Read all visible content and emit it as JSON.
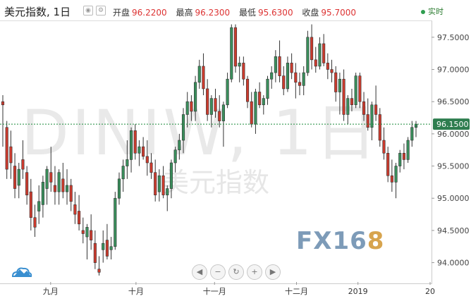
{
  "header": {
    "title": "美元指数, 1日",
    "ohlc": [
      {
        "label": "开盘",
        "value": "96.2200"
      },
      {
        "label": "最高",
        "value": "96.2300"
      },
      {
        "label": "最低",
        "value": "95.6300"
      },
      {
        "label": "收盘",
        "value": "95.7000"
      }
    ],
    "realtime_label": "实时"
  },
  "watermark": {
    "main": "DINIW, 1日",
    "sub": "美元指数",
    "logo_fx": "FX16",
    "logo_8": "8"
  },
  "colors": {
    "up": "#3a8f5c",
    "down": "#cc3b2e",
    "price_line": "#1a8a3a",
    "price_label_bg": "#2e7d4f"
  },
  "icons": [
    "eye-icon",
    "settings-icon",
    "cloud-logo-icon",
    "chevron-left-icon",
    "zoom-out-icon",
    "reset-icon",
    "zoom-in-icon",
    "chevron-right-icon"
  ],
  "chart_data": {
    "type": "candlestick",
    "current_price": "96.1500",
    "ylim": [
      93.7,
      97.75
    ],
    "y_ticks": [
      "97.5000",
      "97.0000",
      "96.5000",
      "96.0000",
      "95.5000",
      "95.0000",
      "94.5000",
      "94.0000"
    ],
    "x_ticks": [
      "九月",
      "十月",
      "十一月",
      "十二月",
      "2019",
      "20"
    ],
    "ohlc": [
      [
        96.5,
        96.6,
        95.8,
        96.45
      ],
      [
        96.1,
        96.2,
        95.3,
        95.45
      ],
      [
        95.8,
        96.05,
        95.3,
        95.55
      ],
      [
        95.5,
        95.7,
        95.0,
        95.15
      ],
      [
        95.2,
        95.55,
        95.0,
        95.45
      ],
      [
        95.6,
        95.9,
        95.3,
        95.45
      ],
      [
        95.4,
        95.5,
        94.9,
        95.05
      ],
      [
        95.1,
        95.3,
        94.5,
        94.7
      ],
      [
        94.7,
        94.9,
        94.4,
        94.55
      ],
      [
        94.8,
        95.2,
        94.6,
        94.95
      ],
      [
        94.9,
        95.35,
        94.7,
        95.25
      ],
      [
        95.15,
        95.5,
        94.9,
        95.45
      ],
      [
        95.4,
        95.8,
        95.1,
        95.25
      ],
      [
        95.2,
        95.5,
        94.9,
        95.1
      ],
      [
        95.1,
        95.45,
        94.9,
        95.4
      ],
      [
        95.3,
        95.55,
        95.0,
        95.1
      ],
      [
        95.1,
        95.45,
        94.9,
        95.2
      ],
      [
        95.2,
        95.3,
        94.8,
        94.95
      ],
      [
        94.9,
        95.1,
        94.6,
        94.75
      ],
      [
        94.8,
        95.05,
        94.5,
        94.6
      ],
      [
        94.5,
        94.7,
        94.3,
        94.45
      ],
      [
        94.4,
        94.6,
        94.05,
        94.55
      ],
      [
        94.5,
        94.75,
        94.2,
        94.35
      ],
      [
        94.3,
        94.5,
        93.9,
        94.0
      ],
      [
        93.9,
        94.1,
        93.8,
        93.85
      ],
      [
        94.2,
        94.5,
        94.0,
        94.3
      ],
      [
        94.35,
        94.6,
        94.05,
        94.1
      ],
      [
        94.2,
        94.4,
        94.05,
        94.25
      ],
      [
        94.25,
        95.1,
        94.2,
        95.0
      ],
      [
        95.0,
        95.4,
        94.9,
        95.3
      ],
      [
        95.3,
        95.6,
        95.1,
        95.5
      ],
      [
        95.5,
        95.9,
        95.3,
        95.6
      ],
      [
        95.6,
        96.1,
        95.4,
        96.05
      ],
      [
        96.05,
        96.15,
        95.6,
        95.7
      ],
      [
        95.7,
        95.9,
        95.5,
        95.8
      ],
      [
        95.8,
        95.95,
        95.6,
        95.65
      ],
      [
        95.65,
        95.9,
        95.35,
        95.55
      ],
      [
        95.55,
        95.7,
        95.3,
        95.4
      ],
      [
        95.4,
        95.6,
        94.95,
        95.05
      ],
      [
        95.1,
        95.45,
        94.95,
        95.35
      ],
      [
        95.35,
        95.5,
        95.0,
        95.05
      ],
      [
        95.05,
        95.2,
        94.8,
        95.15
      ],
      [
        95.15,
        95.6,
        95.0,
        95.55
      ],
      [
        95.55,
        95.8,
        95.4,
        95.75
      ],
      [
        95.75,
        96.0,
        95.6,
        95.9
      ],
      [
        95.9,
        96.4,
        95.7,
        96.3
      ],
      [
        96.3,
        96.65,
        96.1,
        96.5
      ],
      [
        96.5,
        96.6,
        96.2,
        96.35
      ],
      [
        96.35,
        96.9,
        96.2,
        96.8
      ],
      [
        96.8,
        97.15,
        96.7,
        97.05
      ],
      [
        97.05,
        97.25,
        96.6,
        96.7
      ],
      [
        96.7,
        96.85,
        96.2,
        96.3
      ],
      [
        96.3,
        96.6,
        96.1,
        96.55
      ],
      [
        96.55,
        96.7,
        96.25,
        96.35
      ],
      [
        96.35,
        96.6,
        96.1,
        96.2
      ],
      [
        96.2,
        96.5,
        95.8,
        96.45
      ],
      [
        96.45,
        96.95,
        96.4,
        96.85
      ],
      [
        96.85,
        97.7,
        96.8,
        97.65
      ],
      [
        97.65,
        97.7,
        96.95,
        97.05
      ],
      [
        97.05,
        97.2,
        96.8,
        97.1
      ],
      [
        97.1,
        97.2,
        96.75,
        96.85
      ],
      [
        96.85,
        96.9,
        96.4,
        96.5
      ],
      [
        96.5,
        96.65,
        96.1,
        96.15
      ],
      [
        96.15,
        96.7,
        96.0,
        96.65
      ],
      [
        96.65,
        96.8,
        96.4,
        96.45
      ],
      [
        96.45,
        96.6,
        96.3,
        96.55
      ],
      [
        96.55,
        96.9,
        96.45,
        96.85
      ],
      [
        96.85,
        97.05,
        96.7,
        96.95
      ],
      [
        96.95,
        97.3,
        96.8,
        97.2
      ],
      [
        97.2,
        97.45,
        96.8,
        96.9
      ],
      [
        96.9,
        97.05,
        96.6,
        96.7
      ],
      [
        96.7,
        97.2,
        96.65,
        97.1
      ],
      [
        97.1,
        97.25,
        96.85,
        96.95
      ],
      [
        96.95,
        97.1,
        96.55,
        96.8
      ],
      [
        96.8,
        96.95,
        96.6,
        96.75
      ],
      [
        96.75,
        97.05,
        96.6,
        96.95
      ],
      [
        96.95,
        97.6,
        96.9,
        97.5
      ],
      [
        97.5,
        97.7,
        97.0,
        97.15
      ],
      [
        97.15,
        97.35,
        96.95,
        97.05
      ],
      [
        97.05,
        97.5,
        97.0,
        97.4
      ],
      [
        97.4,
        97.55,
        97.05,
        97.1
      ],
      [
        97.1,
        97.25,
        96.85,
        97.0
      ],
      [
        97.0,
        97.15,
        96.8,
        96.95
      ],
      [
        96.95,
        97.05,
        96.5,
        96.65
      ],
      [
        96.65,
        96.95,
        96.3,
        96.85
      ],
      [
        96.85,
        97.0,
        96.2,
        96.3
      ],
      [
        96.3,
        96.6,
        96.15,
        96.55
      ],
      [
        96.55,
        96.7,
        96.35,
        96.45
      ],
      [
        96.45,
        96.95,
        96.4,
        96.9
      ],
      [
        96.9,
        96.95,
        96.4,
        96.5
      ],
      [
        96.5,
        96.65,
        96.2,
        96.3
      ],
      [
        96.3,
        96.55,
        96.05,
        96.1
      ],
      [
        96.1,
        96.5,
        95.9,
        96.45
      ],
      [
        96.45,
        96.75,
        96.2,
        96.3
      ],
      [
        96.3,
        96.4,
        95.8,
        95.9
      ],
      [
        95.9,
        96.1,
        95.6,
        95.7
      ],
      [
        95.7,
        95.8,
        95.25,
        95.35
      ],
      [
        95.35,
        95.6,
        95.1,
        95.25
      ],
      [
        95.25,
        95.55,
        95.0,
        95.5
      ],
      [
        95.5,
        95.75,
        95.4,
        95.7
      ],
      [
        95.7,
        95.85,
        95.45,
        95.6
      ],
      [
        95.6,
        95.95,
        95.55,
        95.9
      ],
      [
        95.9,
        96.2,
        95.8,
        96.1
      ],
      [
        96.1,
        96.2,
        95.95,
        96.15
      ]
    ]
  }
}
